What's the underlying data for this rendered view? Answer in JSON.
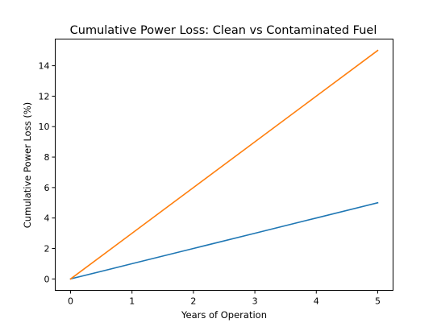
{
  "chart_data": {
    "type": "line",
    "title": "Cumulative Power Loss: Clean vs Contaminated Fuel",
    "xlabel": "Years of Operation",
    "ylabel": "Cumulative Power Loss (%)",
    "x": [
      0,
      1,
      2,
      3,
      4,
      5
    ],
    "xlim": [
      -0.25,
      5.25
    ],
    "ylim": [
      -0.75,
      15.75
    ],
    "xticks": [
      "0",
      "1",
      "2",
      "3",
      "4",
      "5"
    ],
    "yticks": [
      "0",
      "2",
      "4",
      "6",
      "8",
      "10",
      "12",
      "14"
    ],
    "grid": false,
    "series": [
      {
        "values": [
          0,
          1,
          2,
          3,
          4,
          5
        ],
        "color": "#1f77b4"
      },
      {
        "values": [
          0,
          3,
          6,
          9,
          12,
          15
        ],
        "color": "#ff7f0e"
      }
    ]
  }
}
